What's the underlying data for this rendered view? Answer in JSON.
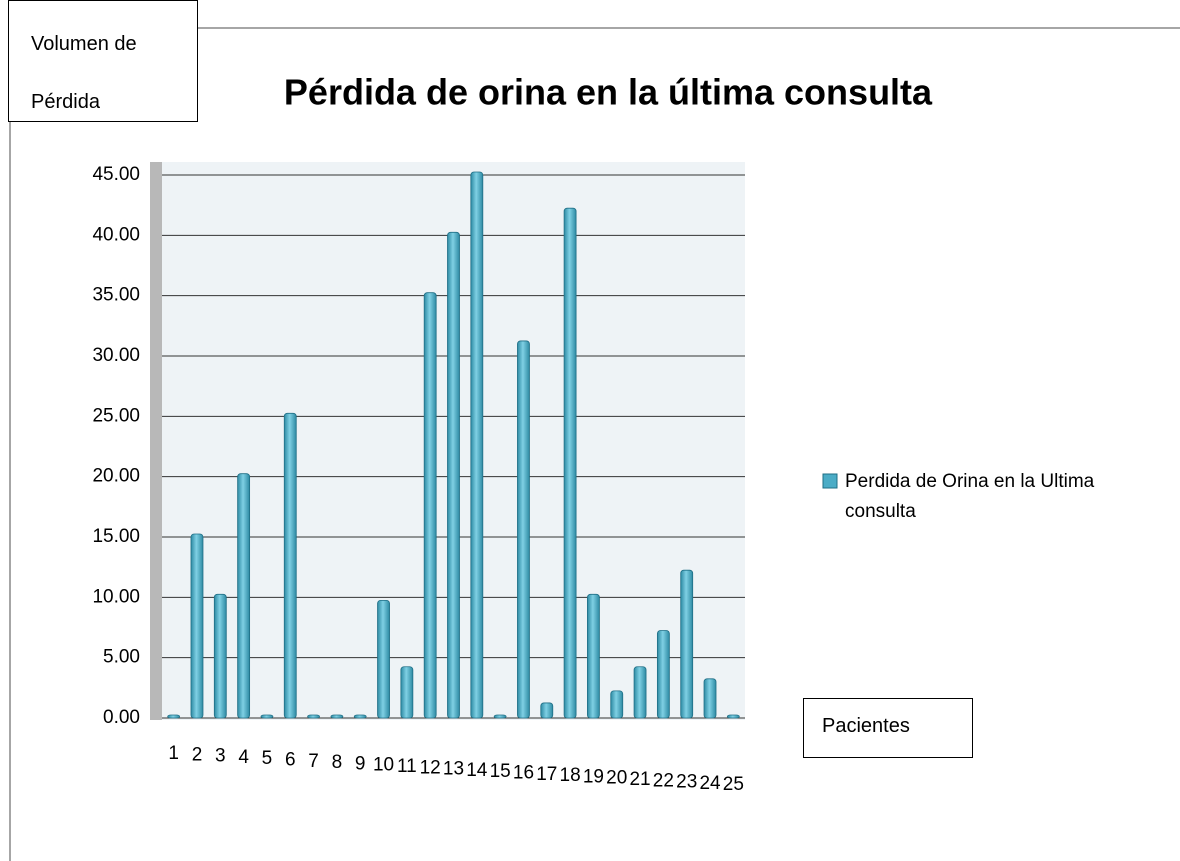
{
  "chart_data": {
    "type": "bar",
    "title": "Pérdida de orina en la última consulta",
    "y_label": "Volumen de Pérdida",
    "x_label": "Pacientes",
    "categories": [
      "1",
      "2",
      "3",
      "4",
      "5",
      "6",
      "7",
      "8",
      "9",
      "10",
      "11",
      "12",
      "13",
      "14",
      "15",
      "16",
      "17",
      "18",
      "19",
      "20",
      "21",
      "22",
      "23",
      "24",
      "25"
    ],
    "series": [
      {
        "name": "Perdida de Orina en la Ultima consulta",
        "color": "#4bacc6",
        "values": [
          0,
          15,
          10,
          20,
          0,
          25,
          0,
          0,
          0,
          9.5,
          4,
          35,
          40,
          45,
          0,
          31,
          1,
          42,
          10,
          2,
          4,
          7,
          12,
          3,
          0
        ]
      }
    ],
    "ylim": [
      0,
      45
    ],
    "yticks": [
      {
        "value": 0,
        "label": "0.00"
      },
      {
        "value": 5,
        "label": "5.00"
      },
      {
        "value": 10,
        "label": "10.00"
      },
      {
        "value": 15,
        "label": "15.00"
      },
      {
        "value": 20,
        "label": "20.00"
      },
      {
        "value": 25,
        "label": "25.00"
      },
      {
        "value": 30,
        "label": "30.00"
      },
      {
        "value": 35,
        "label": "35.00"
      },
      {
        "value": 40,
        "label": "40.00"
      },
      {
        "value": 45,
        "label": "45.00"
      }
    ],
    "grid": true,
    "legend": "right"
  }
}
